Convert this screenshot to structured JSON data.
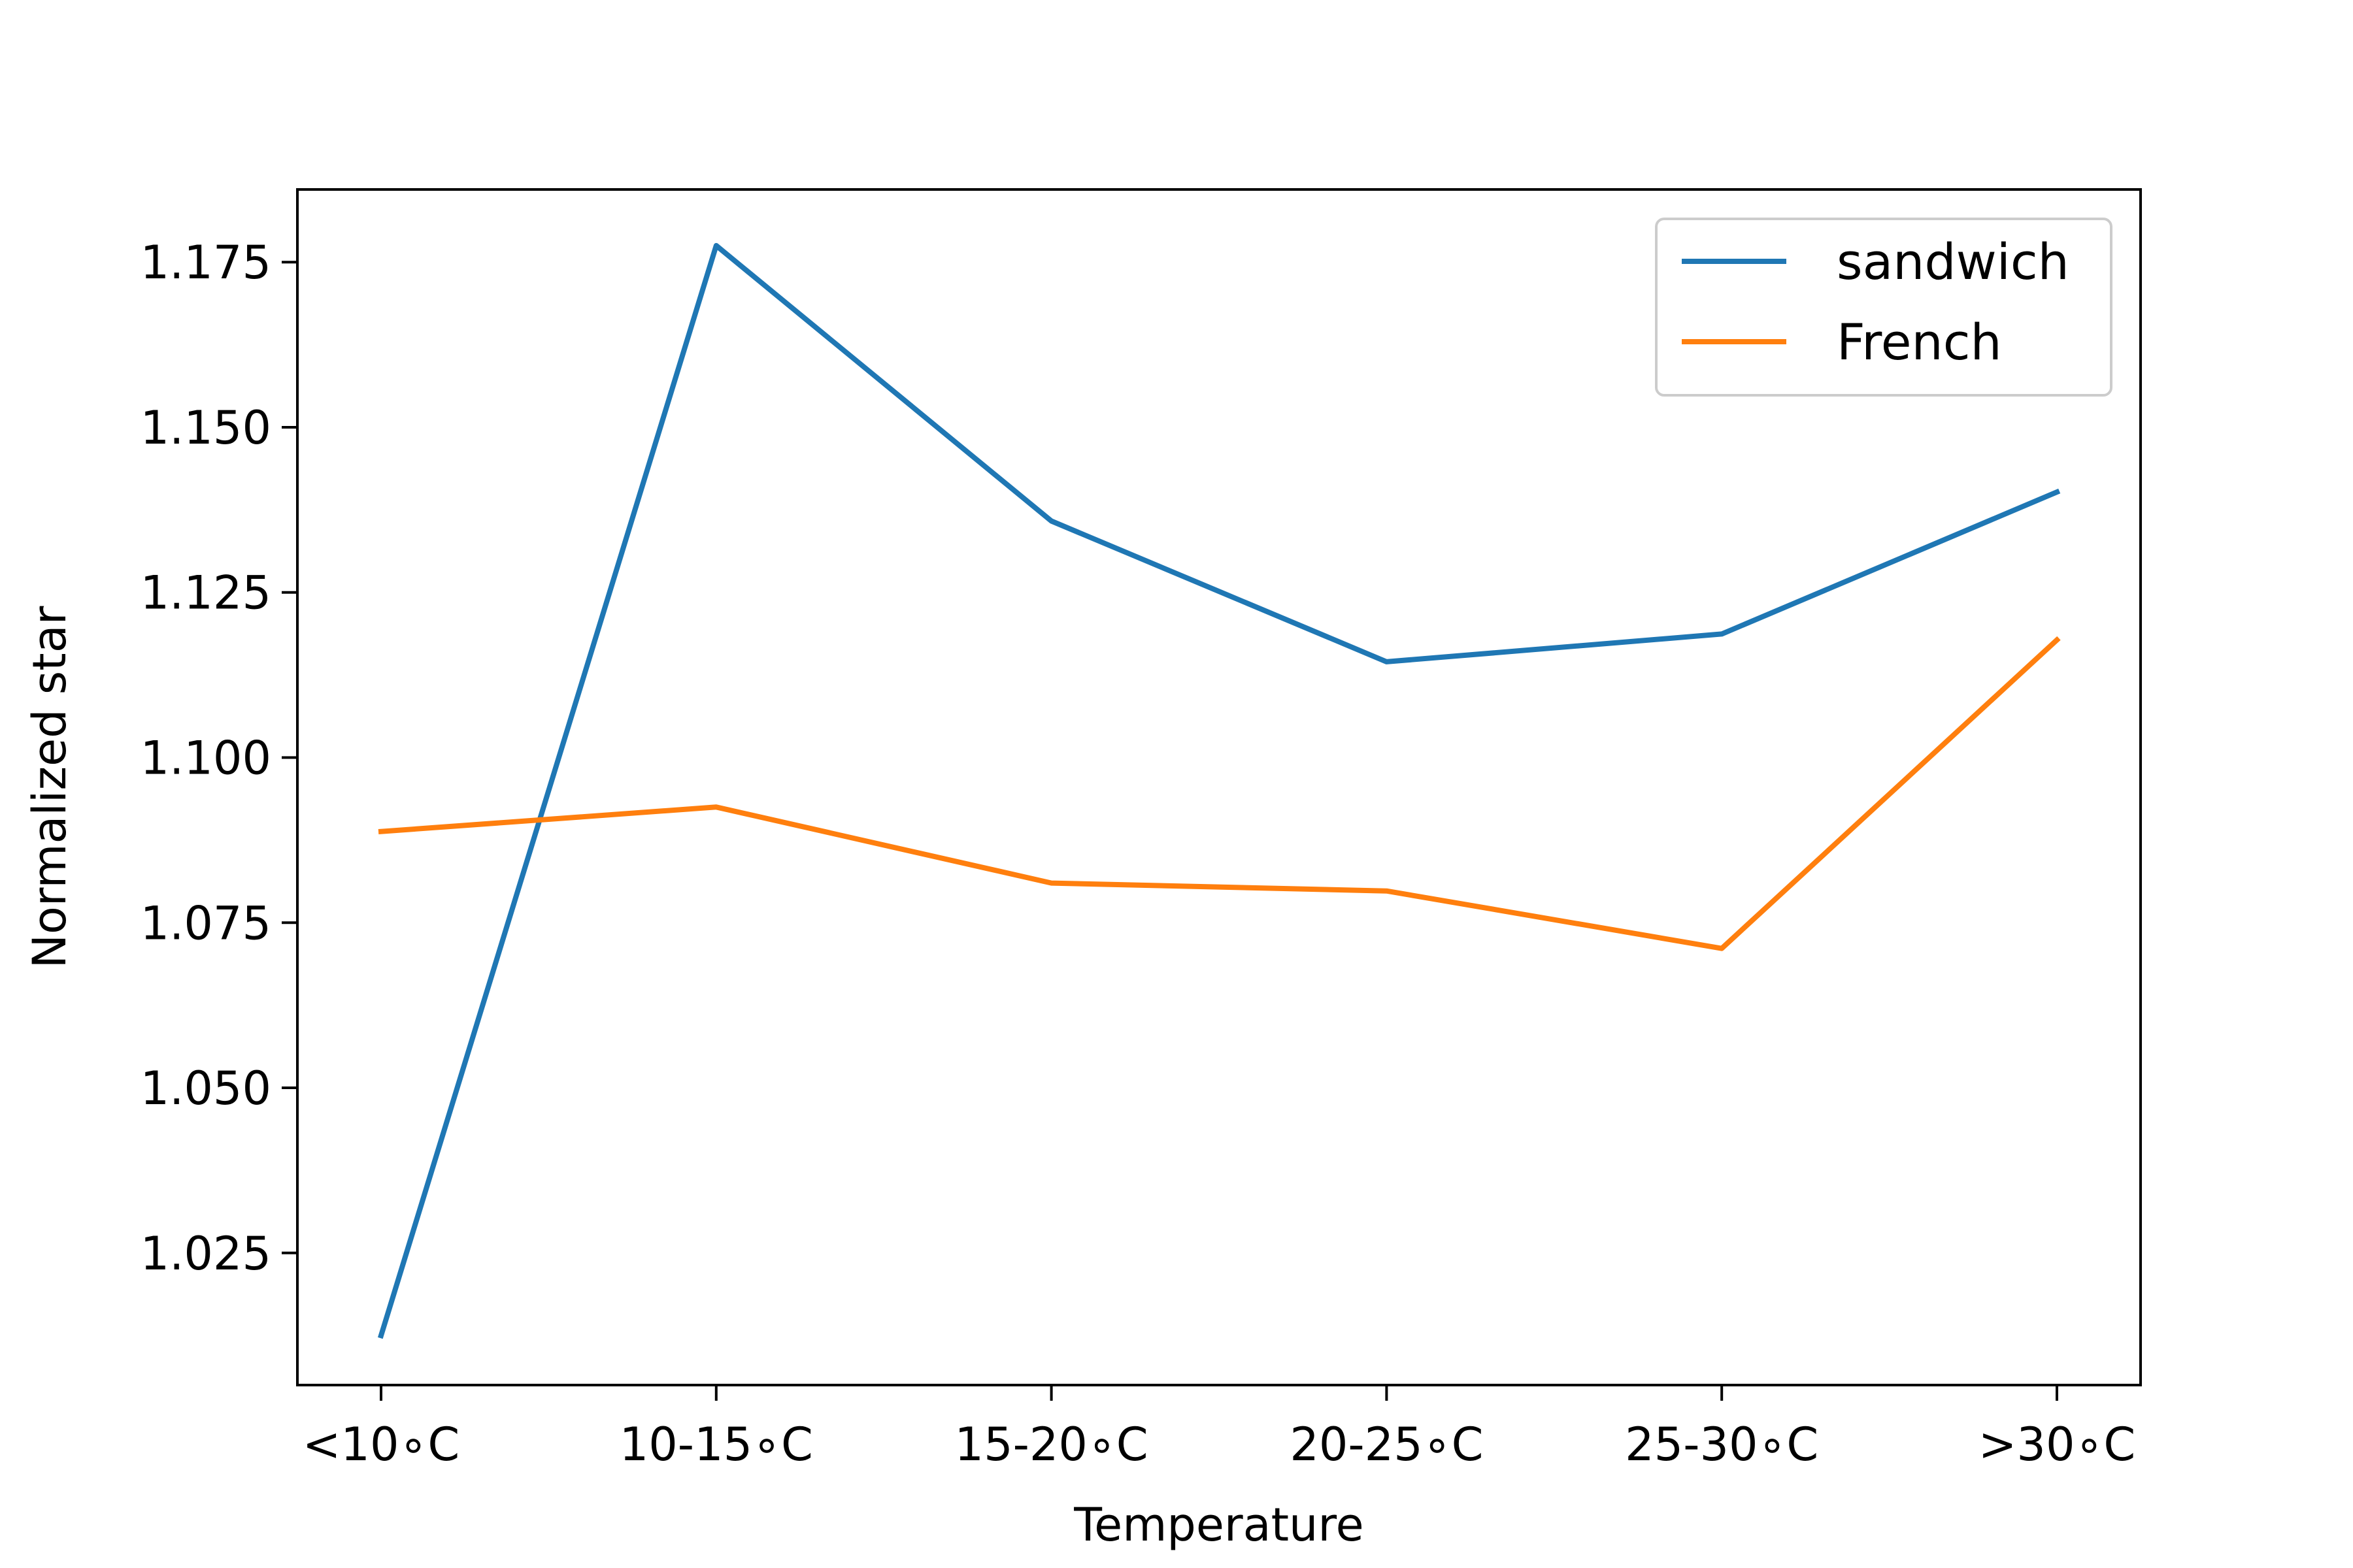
{
  "chart_data": {
    "type": "line",
    "title": "",
    "xlabel": "Temperature",
    "ylabel": "Normalized star",
    "categories": [
      "<10∘C",
      "10-15∘C",
      "15-20∘C",
      "20-25∘C",
      "25-30∘C",
      ">30∘C"
    ],
    "series": [
      {
        "name": "sandwich",
        "color": "#1f77b4",
        "values": [
          1.0125,
          1.1775,
          1.1358,
          1.1145,
          1.1187,
          1.1402
        ]
      },
      {
        "name": "French",
        "color": "#ff7f0e",
        "values": [
          1.0888,
          1.0925,
          1.081,
          1.0798,
          1.0711,
          1.1178
        ]
      }
    ],
    "ylim": [
      1.005,
      1.186
    ],
    "yticks": [
      1.025,
      1.05,
      1.075,
      1.1,
      1.125,
      1.15,
      1.175
    ],
    "ytick_labels": [
      "1.025",
      "1.050",
      "1.075",
      "1.100",
      "1.125",
      "1.150",
      "1.175"
    ],
    "grid": false,
    "legend": "top-right"
  }
}
